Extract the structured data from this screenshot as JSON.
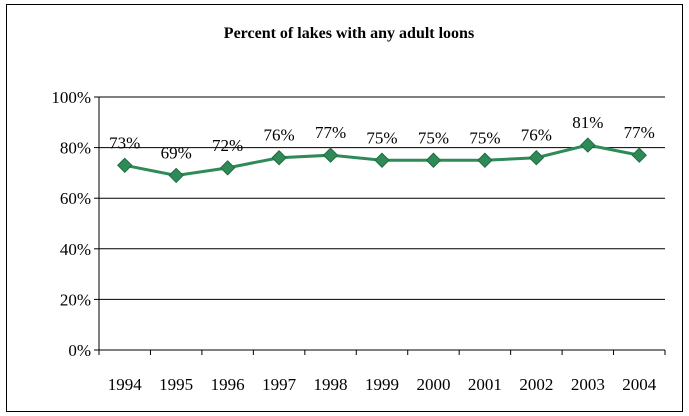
{
  "chart_data": {
    "type": "line",
    "title": "Percent of lakes with any adult loons",
    "xlabel": "",
    "ylabel": "",
    "categories": [
      "1994",
      "1995",
      "1996",
      "1997",
      "1998",
      "1999",
      "2000",
      "2001",
      "2002",
      "2003",
      "2004"
    ],
    "series": [
      {
        "values": [
          73,
          69,
          72,
          76,
          77,
          75,
          75,
          75,
          76,
          81,
          77
        ],
        "data_labels": [
          "73%",
          "69%",
          "72%",
          "76%",
          "77%",
          "75%",
          "75%",
          "75%",
          "76%",
          "81%",
          "77%"
        ],
        "color": "#2e8b57",
        "marker": "diamond"
      }
    ],
    "ylim": [
      0,
      100
    ],
    "yticks": [
      0,
      20,
      40,
      60,
      80,
      100
    ],
    "ytick_labels": [
      "0%",
      "20%",
      "40%",
      "60%",
      "80%",
      "100%"
    ],
    "grid": true,
    "legend": "none"
  }
}
